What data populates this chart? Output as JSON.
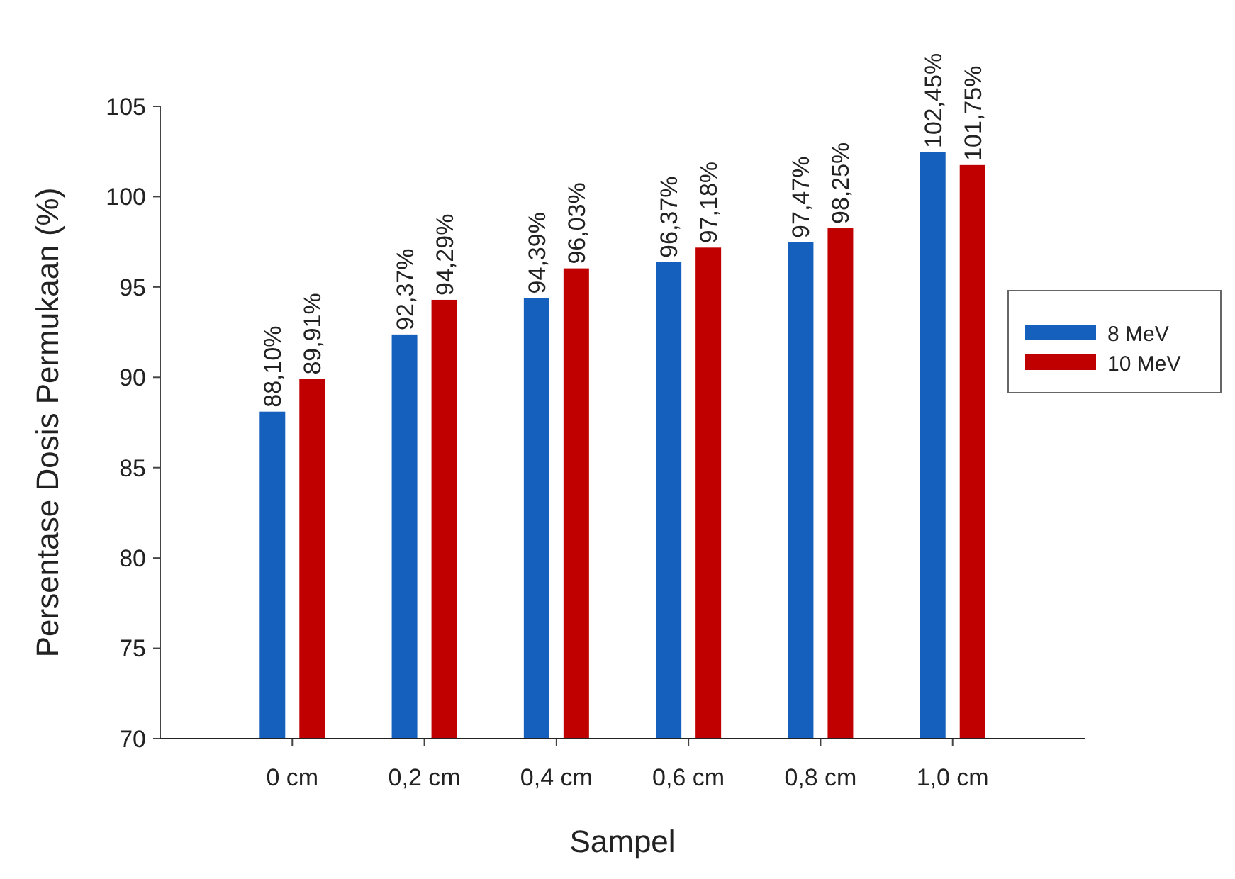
{
  "chart_data": {
    "type": "bar",
    "xlabel": "Sampel",
    "ylabel": "Persentase Dosis Permukaan (%)",
    "categories": [
      "0 cm",
      "0,2 cm",
      "0,4 cm",
      "0,6 cm",
      "0,8 cm",
      "1,0 cm"
    ],
    "series": [
      {
        "name": "8 MeV",
        "color": "#1560bd",
        "values": [
          88.1,
          92.37,
          94.39,
          96.37,
          97.47,
          102.45
        ],
        "value_labels": [
          "88,10%",
          "92,37%",
          "94,39%",
          "96,37%",
          "97,47%",
          "102,45%"
        ]
      },
      {
        "name": "10 MeV",
        "color": "#c00000",
        "values": [
          89.91,
          94.29,
          96.03,
          97.18,
          98.25,
          101.75
        ],
        "value_labels": [
          "89,91%",
          "94,29%",
          "96,03%",
          "97,18%",
          "98,25%",
          "101,75%"
        ]
      }
    ],
    "ylim": [
      70,
      105
    ],
    "yticks": [
      70,
      75,
      80,
      85,
      90,
      95,
      100,
      105
    ],
    "grid": false,
    "legend": "right"
  }
}
